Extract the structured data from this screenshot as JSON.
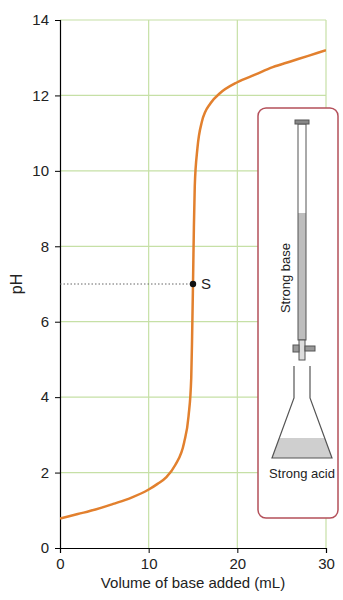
{
  "chart_data": {
    "type": "line",
    "x": [
      0,
      2,
      4,
      6,
      8,
      10,
      11,
      12,
      13,
      14,
      14.5,
      14.8,
      14.9,
      15,
      15.1,
      15.2,
      15.5,
      16,
      17,
      18,
      20,
      22,
      24,
      26,
      28,
      30
    ],
    "series": [
      {
        "color": "#e2802e",
        "values": [
          0.78,
          0.9,
          1.02,
          1.17,
          1.33,
          1.55,
          1.7,
          1.88,
          2.2,
          2.8,
          3.5,
          4.5,
          5.6,
          7.0,
          8.5,
          9.6,
          10.6,
          11.3,
          11.8,
          12.05,
          12.35,
          12.55,
          12.75,
          12.9,
          13.05,
          13.2
        ]
      }
    ],
    "xlabel": "Volume of base added (mL)",
    "ylabel": "pH",
    "xlim": [
      0,
      30
    ],
    "ylim": [
      0,
      14
    ],
    "xticks": [
      0,
      10,
      20,
      30
    ],
    "yticks": [
      0,
      2,
      4,
      6,
      8,
      10,
      12,
      14
    ],
    "grid": true,
    "annotations": [
      {
        "text": "S",
        "x": 15,
        "y": 7
      }
    ],
    "inset_labels": [
      "Strong base",
      "Strong acid"
    ]
  }
}
